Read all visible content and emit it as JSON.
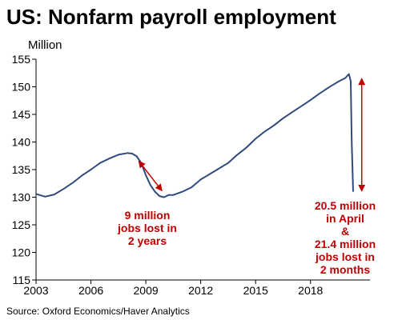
{
  "title": "US: Nonfarm payroll employment",
  "unit_label": "Million",
  "source": "Source: Oxford Economics/Haver Analytics",
  "colors": {
    "line": "#2f4b7c",
    "annotation": "#c00000",
    "axis": "#000000"
  },
  "annotations": [
    {
      "lines": [
        "9 million",
        "jobs lost in",
        "2 years"
      ]
    },
    {
      "lines": [
        "20.5 million",
        "in April",
        "&",
        "21.4 million",
        "jobs lost in",
        "2 months"
      ]
    }
  ],
  "chart_data": {
    "type": "line",
    "xlabel": "",
    "ylabel": "Million",
    "xlim": [
      2003,
      2021.25
    ],
    "ylim": [
      115,
      155
    ],
    "x_ticks": [
      2003,
      2006,
      2009,
      2012,
      2015,
      2018
    ],
    "y_ticks": [
      115,
      120,
      125,
      130,
      135,
      140,
      145,
      150,
      155
    ],
    "grid": false,
    "series": [
      {
        "x": [
          2003.0,
          2003.5,
          2004.0,
          2004.5,
          2005.0,
          2005.5,
          2006.0,
          2006.5,
          2007.0,
          2007.5,
          2008.0,
          2008.25,
          2008.5,
          2008.75,
          2009.0,
          2009.25,
          2009.5,
          2009.75,
          2010.0,
          2010.25,
          2010.5,
          2011.0,
          2011.5,
          2012.0,
          2012.5,
          2013.0,
          2013.5,
          2014.0,
          2014.5,
          2015.0,
          2015.5,
          2016.0,
          2016.5,
          2017.0,
          2017.5,
          2018.0,
          2018.5,
          2019.0,
          2019.5,
          2019.9,
          2020.1,
          2020.2,
          2020.25,
          2020.33
        ],
        "values": [
          130.6,
          130.1,
          130.5,
          131.5,
          132.6,
          133.9,
          135.0,
          136.2,
          137.0,
          137.7,
          138.0,
          137.9,
          137.4,
          136.2,
          134.0,
          132.2,
          131.0,
          130.2,
          130.0,
          130.4,
          130.4,
          131.0,
          131.8,
          133.2,
          134.2,
          135.2,
          136.2,
          137.7,
          139.0,
          140.6,
          141.9,
          143.0,
          144.3,
          145.4,
          146.5,
          147.6,
          148.8,
          149.9,
          150.9,
          151.6,
          152.3,
          151.0,
          140.0,
          131.0
        ]
      }
    ],
    "annotations": [
      {
        "label": "9 million jobs lost in 2 years",
        "arrow_from": [
          2008.0,
          138.0
        ],
        "arrow_to": [
          2009.75,
          130.3
        ]
      },
      {
        "label": "20.5 million in April & 21.4 million jobs lost in 2 months",
        "arrow_from": [
          2020.8,
          151.5
        ],
        "arrow_to": [
          2020.8,
          131.1
        ]
      }
    ]
  }
}
